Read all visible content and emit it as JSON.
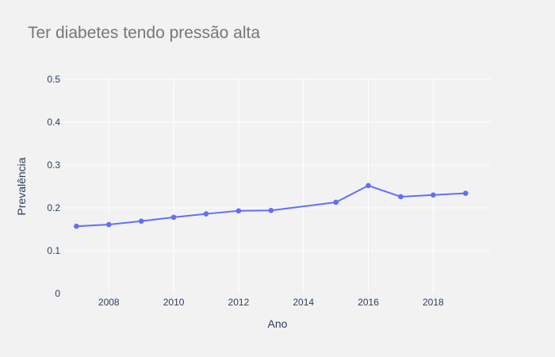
{
  "chart_data": {
    "type": "line",
    "title": "Ter diabetes tendo pressão alta",
    "xlabel": "Ano",
    "ylabel": "Prevalência",
    "xlim": [
      2006.6,
      2019.8
    ],
    "ylim": [
      0,
      0.5
    ],
    "x_ticks": [
      "2008",
      "2010",
      "2012",
      "2014",
      "2016",
      "2018"
    ],
    "y_ticks": [
      "0",
      "0.1",
      "0.2",
      "0.3",
      "0.4",
      "0.5"
    ],
    "grid": true,
    "legend": "none",
    "colors": {
      "line": "#636efa",
      "background": "#f2f2f2",
      "grid": "#ffffff",
      "text": "#2a3f5f",
      "title": "#777777"
    },
    "series": [
      {
        "x": [
          2007,
          2008,
          2009,
          2010,
          2011,
          2012,
          2013,
          2015,
          2016,
          2017,
          2018,
          2019
        ],
        "y": [
          0.157,
          0.161,
          0.169,
          0.178,
          0.186,
          0.193,
          0.194,
          0.213,
          0.252,
          0.226,
          0.23,
          0.234
        ]
      }
    ]
  }
}
